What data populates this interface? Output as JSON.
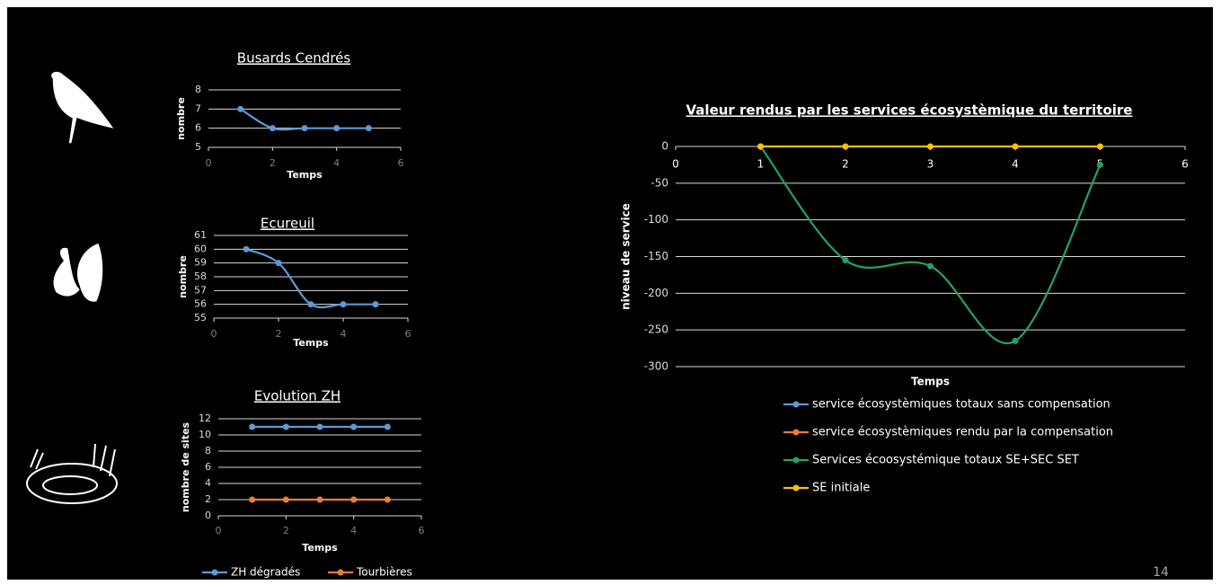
{
  "chart_data": [
    {
      "type": "line",
      "title": "Busards Cendrés",
      "xlabel": "Temps",
      "ylabel": "nombre",
      "x": [
        1,
        2,
        3,
        4,
        5
      ],
      "series": [
        {
          "name": null,
          "color": "#5b9bd5",
          "values": [
            7,
            6,
            6,
            6,
            6
          ]
        }
      ],
      "xlim": [
        0,
        6
      ],
      "xticks": [
        0,
        2,
        4,
        6
      ],
      "ylim": [
        5,
        8
      ],
      "yticks": [
        5,
        6,
        7,
        8
      ],
      "grid": true,
      "smooth": true
    },
    {
      "type": "line",
      "title": "Ecureuil",
      "xlabel": "Temps",
      "ylabel": "nombre",
      "x": [
        1,
        2,
        3,
        4,
        5
      ],
      "series": [
        {
          "name": null,
          "color": "#5b9bd5",
          "values": [
            60,
            59,
            56,
            56,
            56
          ]
        }
      ],
      "xlim": [
        0,
        6
      ],
      "xticks": [
        0,
        2,
        4,
        6
      ],
      "ylim": [
        55,
        61
      ],
      "yticks": [
        55,
        56,
        57,
        58,
        59,
        60,
        61
      ],
      "grid": true,
      "smooth": true
    },
    {
      "type": "line",
      "title": "Evolution ZH",
      "xlabel": "Temps",
      "ylabel": "nombre de sites",
      "x": [
        1,
        2,
        3,
        4,
        5
      ],
      "series": [
        {
          "name": "ZH dégradés",
          "color": "#5b9bd5",
          "values": [
            11,
            11,
            11,
            11,
            11
          ]
        },
        {
          "name": "Tourbières",
          "color": "#ed7d31",
          "values": [
            2,
            2,
            2,
            2,
            2
          ]
        }
      ],
      "xlim": [
        0,
        6
      ],
      "xticks": [
        0,
        2,
        4,
        6
      ],
      "ylim": [
        0,
        12
      ],
      "yticks": [
        0,
        2,
        4,
        6,
        8,
        10,
        12
      ],
      "grid": true,
      "smooth": false,
      "legend": "bottom"
    },
    {
      "type": "line",
      "title": "Valeur rendus par les services écosystèmique du territoire",
      "xlabel": "Temps",
      "ylabel": "niveau de service",
      "x": [
        1,
        2,
        3,
        4,
        5
      ],
      "series": [
        {
          "name": "service écosystèmiques totaux sans compensation",
          "color": "#5b9bd5",
          "values": [
            null,
            null,
            null,
            null,
            null
          ]
        },
        {
          "name": "service écosystèmiques rendu par la compensation",
          "color": "#ed7d31",
          "values": [
            null,
            null,
            null,
            null,
            null
          ]
        },
        {
          "name": "Services écoosystémique totaux SE+SEC SET",
          "color": "#21a366",
          "values": [
            0,
            -155,
            -163,
            -265,
            -25
          ]
        },
        {
          "name": "SE initiale",
          "color": "#ffc000",
          "values": [
            0,
            0,
            0,
            0,
            0
          ]
        }
      ],
      "xlim": [
        0,
        6
      ],
      "xticks": [
        0,
        1,
        2,
        3,
        4,
        5,
        6
      ],
      "ylim": [
        -300,
        0
      ],
      "yticks": [
        -300,
        -250,
        -200,
        -150,
        -100,
        -50,
        0
      ],
      "grid": true,
      "smooth": true,
      "legend": "bottom"
    }
  ],
  "page_number": "14"
}
